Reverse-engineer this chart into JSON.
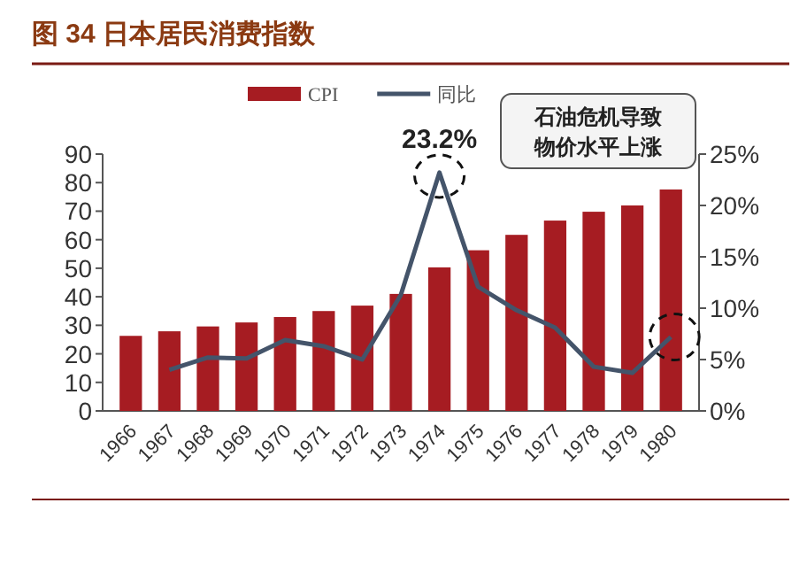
{
  "chart_data": {
    "type": "bar",
    "title": "图 34 日本居民消费指数",
    "categories": [
      "1966",
      "1967",
      "1968",
      "1969",
      "1970",
      "1971",
      "1972",
      "1973",
      "1974",
      "1975",
      "1976",
      "1977",
      "1978",
      "1979",
      "1980"
    ],
    "series": [
      {
        "name": "CPI",
        "color": "#a61c22",
        "values": [
          26.3,
          27.9,
          29.6,
          31,
          32.9,
          35,
          36.9,
          41,
          50.3,
          56.3,
          61.7,
          66.7,
          69.8,
          72,
          77.6
        ]
      },
      {
        "name": "同比",
        "type": "line",
        "axis": "y2",
        "color": "#44546a",
        "values": [
          null,
          4.0,
          5.2,
          5.1,
          6.9,
          6.3,
          5.0,
          11.3,
          23.2,
          12.1,
          9.8,
          8.1,
          4.3,
          3.7,
          7.2
        ]
      }
    ],
    "ylim": [
      0,
      90
    ],
    "yticks": [
      0,
      10,
      20,
      30,
      40,
      50,
      60,
      70,
      80,
      90
    ],
    "y2lim": [
      0,
      25
    ],
    "y2ticks": [
      {
        "value": 0,
        "label": "0%"
      },
      {
        "value": 5,
        "label": "5%"
      },
      {
        "value": 10,
        "label": "10%"
      },
      {
        "value": 15,
        "label": "15%"
      },
      {
        "value": 20,
        "label": "20%"
      },
      {
        "value": 25,
        "label": "25%"
      }
    ],
    "annotations": [
      "23.2%",
      "石油危机导致物价水平上涨"
    ],
    "legend": "top",
    "grid": false,
    "marker": "none",
    "line_style": "solid"
  }
}
